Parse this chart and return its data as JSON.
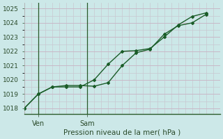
{
  "xlabel": "Pression niveau de la mer( hPa )",
  "background_color": "#cce8e8",
  "grid_color_major": "#b8ccb8",
  "grid_color_minor": "#c8dcc8",
  "line_color": "#1a5c28",
  "ylim": [
    1017.6,
    1025.4
  ],
  "xlim": [
    0,
    14
  ],
  "yticks": [
    1018,
    1019,
    1020,
    1021,
    1022,
    1023,
    1024,
    1025
  ],
  "ytick_top": 1025,
  "xtick_labels": [
    "Ven",
    "Sam"
  ],
  "xtick_positions": [
    1.0,
    4.5
  ],
  "vline_positions": [
    1.0,
    4.5
  ],
  "series1_x": [
    0,
    1,
    2,
    3,
    4,
    5,
    6,
    7,
    8,
    9,
    10,
    11,
    12,
    13
  ],
  "series1_y": [
    1018.0,
    1019.0,
    1019.5,
    1019.6,
    1019.6,
    1019.55,
    1019.8,
    1021.0,
    1021.9,
    1022.15,
    1023.2,
    1023.8,
    1024.0,
    1024.6
  ],
  "series2_x": [
    0,
    1,
    2,
    3,
    4,
    5,
    6,
    7,
    8,
    9,
    10,
    11,
    12,
    13
  ],
  "series2_y": [
    1018.0,
    1019.0,
    1019.5,
    1019.5,
    1019.5,
    1020.0,
    1021.1,
    1022.0,
    1022.05,
    1022.2,
    1023.0,
    1023.85,
    1024.45,
    1024.7
  ]
}
